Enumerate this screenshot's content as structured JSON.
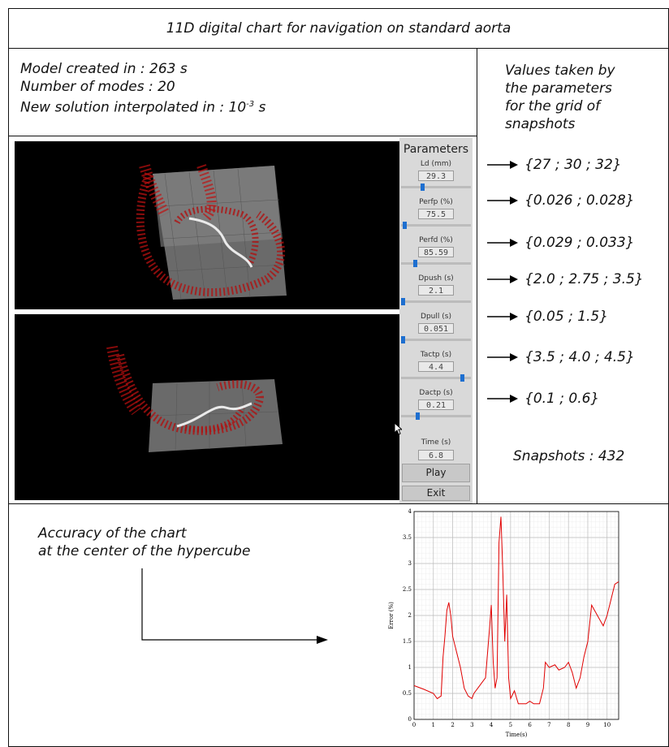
{
  "title": "11D digital chart for navigation on standard aorta",
  "model_info": {
    "line1": "Model created in : 263 s",
    "line2": "Number of modes : 20",
    "line3_prefix": "New solution interpolated in : 10",
    "line3_exp": "-3",
    "line3_suffix": " s"
  },
  "values_header": [
    "Values taken by",
    "the parameters",
    "for the grid of",
    "snapshots"
  ],
  "parameter_values": [
    "{27 ; 30 ; 32}",
    "{0.026 ; 0.028}",
    "{0.029 ; 0.033}",
    "{2.0 ; 2.75 ; 3.5}",
    "{0.05 ; 1.5}",
    "{3.5 ; 4.0 ; 4.5}",
    "{0.1 ; 0.6}"
  ],
  "snapshots_label": "Snapshots : 432",
  "panel": {
    "title": "Parameters",
    "params": [
      {
        "label": "Ld (mm)",
        "value": "29.3",
        "slider": 0.3
      },
      {
        "label": "Perfp (%)",
        "value": "75.5",
        "slider": 0.02
      },
      {
        "label": "Perfd (%)",
        "value": "85.59",
        "slider": 0.18
      },
      {
        "label": "Dpush (s)",
        "value": "2.1",
        "slider": 0.0
      },
      {
        "label": "Dpull (s)",
        "value": "0.051",
        "slider": 0.0
      },
      {
        "label": "Tactp (s)",
        "value": "4.4",
        "slider": 0.9
      },
      {
        "label": "Dactp (s)",
        "value": "0.21",
        "slider": 0.22
      }
    ],
    "time_label": "Time (s)",
    "time_value": "6.8",
    "play_label": "Play",
    "exit_label": "Exit",
    "accent": "#1e6fd0"
  },
  "accuracy_text": [
    "Accuracy of the chart",
    "at the center of the hypercube"
  ],
  "chart_data": {
    "type": "line",
    "xlabel": "Time(s)",
    "ylabel": "Error (%)",
    "xlim": [
      0,
      10.6
    ],
    "ylim": [
      0,
      4
    ],
    "xticks": [
      "0",
      "1",
      "2",
      "3",
      "4",
      "5",
      "6",
      "7",
      "8",
      "9",
      "10"
    ],
    "yticks": [
      "0",
      "0.5",
      "1",
      "1.5",
      "2",
      "2.5",
      "3",
      "3.5",
      "4"
    ],
    "grid": true,
    "color": "#e00000",
    "series": [
      {
        "x": [
          0,
          0.5,
          1,
          1.2,
          1.4,
          1.5,
          1.6,
          1.7,
          1.8,
          1.9,
          2.0,
          2.2,
          2.4,
          2.6,
          2.8,
          3.0,
          3.1,
          3.3,
          3.5,
          3.7,
          3.9,
          4.0,
          4.1,
          4.2,
          4.3,
          4.4,
          4.5,
          4.6,
          4.7,
          4.8,
          4.9,
          5.0,
          5.2,
          5.4,
          5.6,
          5.8,
          6.0,
          6.2,
          6.5,
          6.7,
          6.8,
          7.0,
          7.3,
          7.5,
          7.8,
          8.0,
          8.2,
          8.4,
          8.6,
          8.8,
          9.0,
          9.2,
          9.5,
          9.8,
          10.0,
          10.2,
          10.4,
          10.6
        ],
        "y": [
          0.65,
          0.58,
          0.5,
          0.4,
          0.45,
          1.2,
          1.6,
          2.1,
          2.25,
          2.0,
          1.6,
          1.3,
          1.0,
          0.6,
          0.45,
          0.4,
          0.5,
          0.6,
          0.7,
          0.8,
          1.7,
          2.2,
          1.1,
          0.6,
          0.8,
          3.4,
          3.9,
          2.8,
          1.5,
          2.4,
          0.8,
          0.4,
          0.55,
          0.3,
          0.3,
          0.3,
          0.35,
          0.3,
          0.3,
          0.6,
          1.1,
          1.0,
          1.05,
          0.95,
          1.0,
          1.1,
          0.9,
          0.6,
          0.8,
          1.2,
          1.5,
          2.2,
          2.0,
          1.8,
          2.0,
          2.3,
          2.6,
          2.65
        ]
      }
    ]
  }
}
